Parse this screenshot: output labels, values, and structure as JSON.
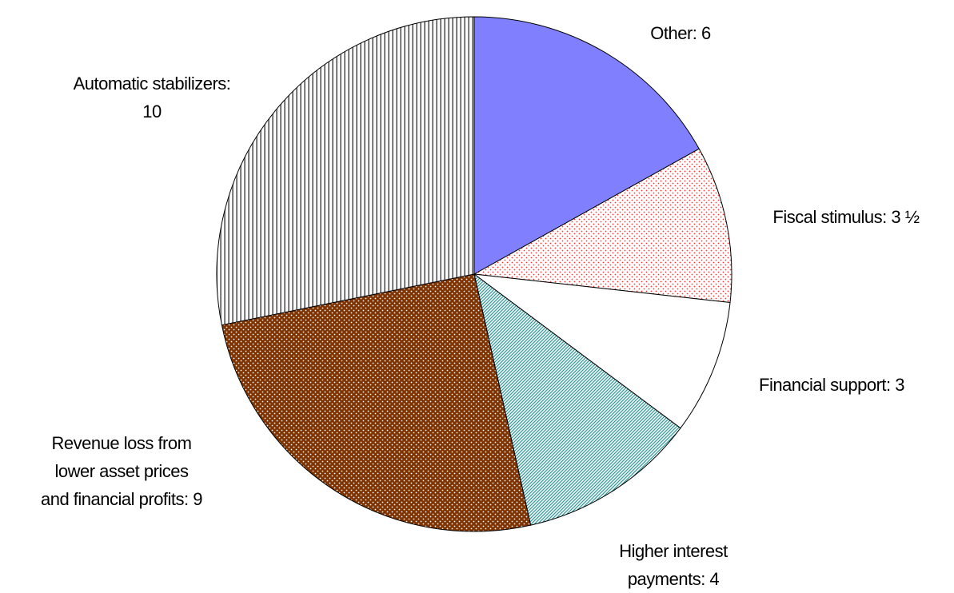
{
  "chart_data": {
    "type": "pie",
    "labels": [
      "Other: 6",
      "Fiscal stimulus: 3 ½",
      "Financial support: 3",
      "Higher interest\npayments: 4",
      "Revenue loss from\nlower asset prices\nand financial profits: 9",
      "Automatic stabilizers:\n10"
    ],
    "values": [
      6,
      3.5,
      3,
      4,
      9,
      10
    ],
    "colors": [
      "#8080ff",
      "#ffffff",
      "#ffffff",
      "#ffffff",
      "#7f3300",
      "#ffffff"
    ],
    "patterns": [
      "solid",
      "dots",
      "solid",
      "diagonal",
      "dots",
      "vertical"
    ],
    "pattern_colors": [
      "#8080ff",
      "#ff3333",
      "#ffffff",
      "#339999",
      "#ffffff",
      "#808080"
    ]
  }
}
